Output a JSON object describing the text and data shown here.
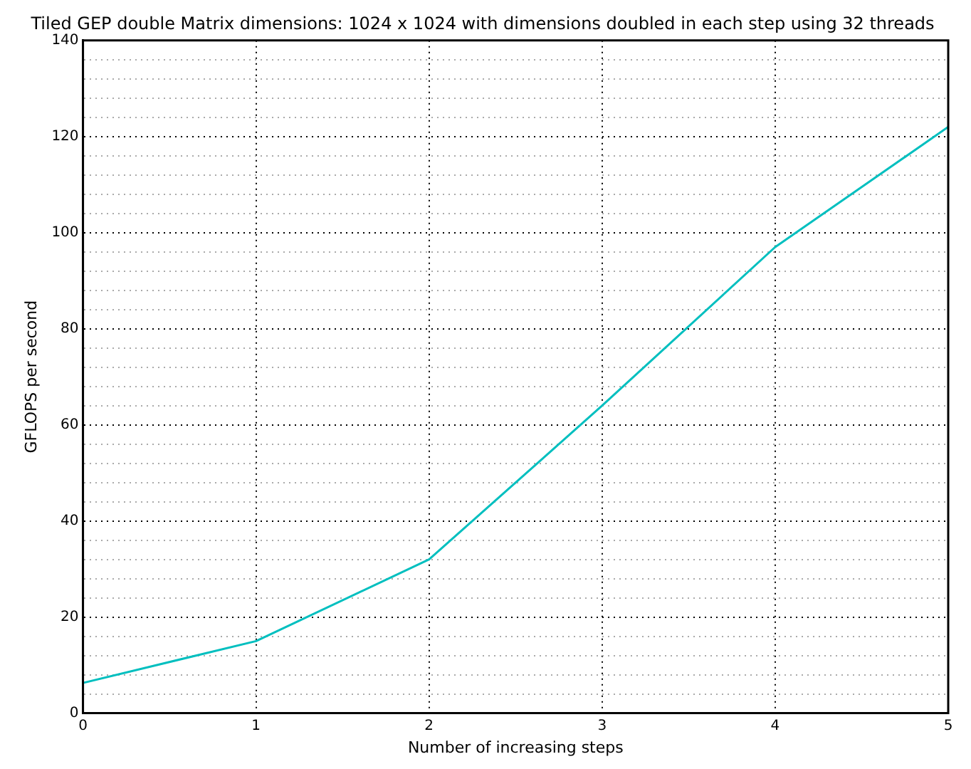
{
  "chart_data": {
    "type": "line",
    "title": "Tiled GEP double Matrix dimensions: 1024 x 1024 with dimensions doubled in each step using 32 threads",
    "xlabel": "Number of increasing steps",
    "ylabel": "GFLOPS per second",
    "x": [
      0,
      1,
      2,
      3,
      4,
      5
    ],
    "series": [
      {
        "color": "#00bfbf",
        "values": [
          6.3,
          15,
          32,
          64,
          97,
          122
        ]
      }
    ],
    "xlim": [
      0,
      5
    ],
    "xticks": [
      0,
      1,
      2,
      3,
      4,
      5
    ],
    "ylim": [
      0,
      140
    ],
    "yticks": [
      0,
      {
        "value": 4,
        "label": null
      },
      {
        "value": 8,
        "label": null
      },
      {
        "value": 12,
        "label": null
      },
      {
        "value": 16,
        "label": null
      },
      20,
      {
        "value": 24,
        "label": null
      },
      {
        "value": 28,
        "label": null
      },
      {
        "value": 32,
        "label": null
      },
      {
        "value": 36,
        "label": null
      },
      40,
      {
        "value": 44,
        "label": null
      },
      {
        "value": 48,
        "label": null
      },
      {
        "value": 52,
        "label": null
      },
      {
        "value": 56,
        "label": null
      },
      60,
      {
        "value": 64,
        "label": null
      },
      {
        "value": 68,
        "label": null
      },
      {
        "value": 72,
        "label": null
      },
      {
        "value": 76,
        "label": null
      },
      80,
      {
        "value": 84,
        "label": null
      },
      {
        "value": 88,
        "label": null
      },
      {
        "value": 92,
        "label": null
      },
      {
        "value": 96,
        "label": null
      },
      100,
      {
        "value": 104,
        "label": null
      },
      {
        "value": 108,
        "label": null
      },
      {
        "value": 112,
        "label": null
      },
      {
        "value": 116,
        "label": null
      },
      120,
      {
        "value": 124,
        "label": null
      },
      {
        "value": 128,
        "label": null
      },
      {
        "value": 132,
        "label": null
      },
      {
        "value": 136,
        "label": null
      },
      140
    ],
    "grid": true,
    "legend": false,
    "marker": "none",
    "line_style": "solid"
  }
}
